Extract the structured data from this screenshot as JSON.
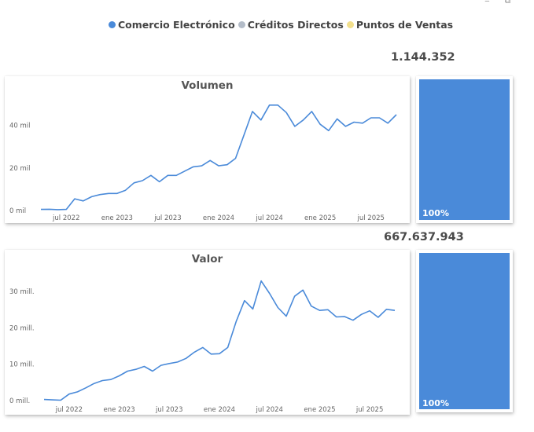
{
  "legend": [
    {
      "label": "Comercio Electrónico",
      "color": "#4a8ad9"
    },
    {
      "label": "Créditos Directos",
      "color": "#b3bcc8"
    },
    {
      "label": "Puntos de Ventas",
      "color": "#f2df8c"
    }
  ],
  "header_icons": [
    "minimize-icon",
    "focus-mode-icon"
  ],
  "totals": {
    "volumen": "1.144.352",
    "valor": "667.637.943"
  },
  "share": {
    "volumen_pct": "100%",
    "valor_pct": "100%",
    "volumen_fraction": 1.0,
    "valor_fraction": 1.0
  },
  "chart_data": [
    {
      "type": "line",
      "title": "Volumen",
      "xlabel": "",
      "ylabel": "",
      "x_tick_labels": [
        "jul 2022",
        "ene 2023",
        "jul 2023",
        "ene 2024",
        "jul 2024",
        "ene 2025",
        "jul 2025"
      ],
      "x_tick_index": [
        3,
        9,
        15,
        21,
        27,
        33,
        39
      ],
      "y_ticks": [
        0,
        20000,
        40000
      ],
      "y_tick_labels": [
        "0 mil",
        "20 mil",
        "40 mil"
      ],
      "ylim": [
        0,
        52000
      ],
      "grid": false,
      "series": [
        {
          "name": "Comercio Electrónico",
          "color": "#4a8ad9",
          "x": [
            "2022-04",
            "2022-05",
            "2022-06",
            "2022-07",
            "2022-08",
            "2022-09",
            "2022-10",
            "2022-11",
            "2022-12",
            "2023-01",
            "2023-02",
            "2023-03",
            "2023-04",
            "2023-05",
            "2023-06",
            "2023-07",
            "2023-08",
            "2023-09",
            "2023-10",
            "2023-11",
            "2023-12",
            "2024-01",
            "2024-02",
            "2024-03",
            "2024-04",
            "2024-05",
            "2024-06",
            "2024-07",
            "2024-08",
            "2024-09",
            "2024-10",
            "2024-11",
            "2024-12",
            "2025-01",
            "2025-02",
            "2025-03",
            "2025-04",
            "2025-05",
            "2025-06",
            "2025-07",
            "2025-08",
            "2025-09",
            "2025-10"
          ],
          "values": [
            500,
            600,
            400,
            500,
            5500,
            4500,
            6500,
            7500,
            8000,
            8000,
            9500,
            13000,
            14000,
            16500,
            13500,
            16500,
            16500,
            18500,
            20500,
            21000,
            23500,
            21000,
            21500,
            24500,
            35500,
            46500,
            42500,
            49500,
            49500,
            46000,
            39500,
            42500,
            46500,
            40500,
            37500,
            43000,
            39500,
            41500,
            41000,
            43500,
            43500,
            41000,
            45000
          ]
        }
      ]
    },
    {
      "type": "line",
      "title": "Valor",
      "xlabel": "",
      "ylabel": "",
      "x_tick_labels": [
        "jul 2022",
        "ene 2023",
        "jul 2023",
        "ene 2024",
        "jul 2024",
        "ene 2025",
        "jul 2025"
      ],
      "x_tick_index": [
        3,
        9,
        15,
        21,
        27,
        33,
        39
      ],
      "y_ticks": [
        0,
        10000000,
        20000000,
        30000000
      ],
      "y_tick_labels": [
        "0 mill.",
        "10 mill.",
        "20 mill.",
        "30 mill."
      ],
      "ylim": [
        0,
        35000000
      ],
      "grid": false,
      "series": [
        {
          "name": "Comercio Electrónico",
          "color": "#4a8ad9",
          "x": [
            "2022-04",
            "2022-05",
            "2022-06",
            "2022-07",
            "2022-08",
            "2022-09",
            "2022-10",
            "2022-11",
            "2022-12",
            "2023-01",
            "2023-02",
            "2023-03",
            "2023-04",
            "2023-05",
            "2023-06",
            "2023-07",
            "2023-08",
            "2023-09",
            "2023-10",
            "2023-11",
            "2023-12",
            "2024-01",
            "2024-02",
            "2024-03",
            "2024-04",
            "2024-05",
            "2024-06",
            "2024-07",
            "2024-08",
            "2024-09",
            "2024-10",
            "2024-11",
            "2024-12",
            "2025-01",
            "2025-02",
            "2025-03",
            "2025-04",
            "2025-05",
            "2025-06",
            "2025-07",
            "2025-08",
            "2025-09",
            "2025-10"
          ],
          "values": [
            300000,
            200000,
            100000,
            1800000,
            2400000,
            3500000,
            4700000,
            5500000,
            5800000,
            6800000,
            8100000,
            8600000,
            9400000,
            8100000,
            9700000,
            10200000,
            10600000,
            11600000,
            13300000,
            14600000,
            12800000,
            12900000,
            14600000,
            21700000,
            27500000,
            25200000,
            32900000,
            29500000,
            25600000,
            23200000,
            28700000,
            30400000,
            26000000,
            24800000,
            25000000,
            23000000,
            23100000,
            22100000,
            23700000,
            24700000,
            22900000,
            25100000,
            24800000
          ]
        }
      ]
    }
  ]
}
